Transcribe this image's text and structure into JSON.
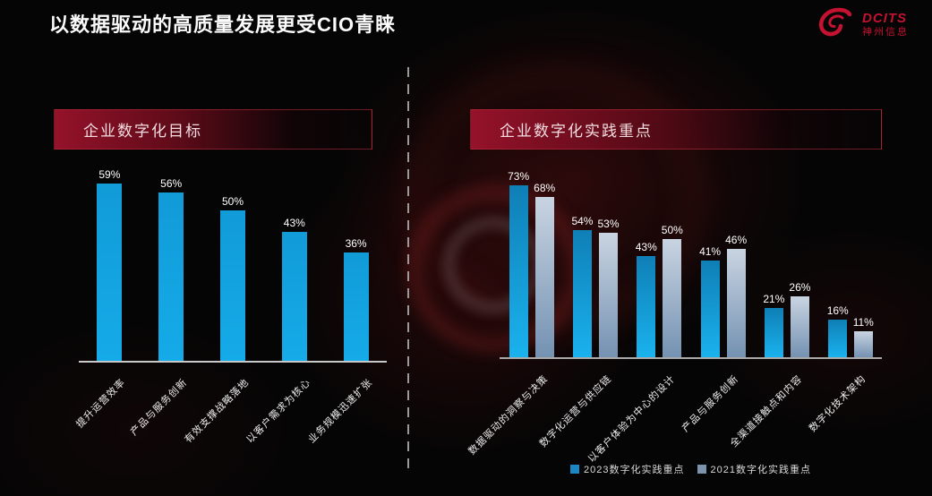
{
  "slide": {
    "title": "以数据驱动的高质量发展更受CIO青睐"
  },
  "logo": {
    "brand": "DCITS",
    "company": "神州信息",
    "color": "#c41230",
    "icon": "dcits-swirl-icon"
  },
  "colors": {
    "bar_blue": "#18a6e6",
    "bar_gray": "#9fb3c8",
    "banner_red": "#95122a",
    "background": "#050505"
  },
  "chart_data": [
    {
      "type": "bar",
      "title": "企业数字化目标",
      "categories": [
        "提升运营效率",
        "产品与服务创新",
        "有效支撑战略落地",
        "以客户需求为核心",
        "业务规模迅速扩张"
      ],
      "values": [
        59,
        56,
        50,
        43,
        36
      ],
      "unit": "%",
      "series": [
        {
          "name": "",
          "values": [
            59,
            56,
            50,
            43,
            36
          ],
          "gradient": [
            "#119bd8",
            "#15abe8"
          ],
          "legend_color": "#149fd9"
        }
      ],
      "xlabel": "",
      "ylabel": "",
      "ylim": [
        0,
        63
      ],
      "grid": false,
      "legend_position": "none",
      "data_labels": true
    },
    {
      "type": "bar",
      "title": "企业数字化实践重点",
      "categories": [
        "数据驱动的洞察与决策",
        "数字化运营与供应链",
        "以客户体验为中心的设计",
        "产品与服务创新",
        "全渠道接触点和内容",
        "数字化技术架构"
      ],
      "unit": "%",
      "series": [
        {
          "name": "2023数字化实践重点",
          "values": [
            73,
            54,
            43,
            41,
            21,
            16
          ],
          "gradient": [
            "#0f7fb6",
            "#1ab2ee"
          ],
          "legend_color": "#1d87c3"
        },
        {
          "name": "2021数字化实践重点",
          "values": [
            68,
            53,
            50,
            46,
            26,
            11
          ],
          "gradient": [
            "#c9d4e1",
            "#7492b2"
          ],
          "legend_color": "#7d93ad"
        }
      ],
      "xlabel": "",
      "ylabel": "",
      "ylim": [
        0,
        80
      ],
      "grid": false,
      "legend_position": "bottom",
      "data_labels": true
    }
  ]
}
